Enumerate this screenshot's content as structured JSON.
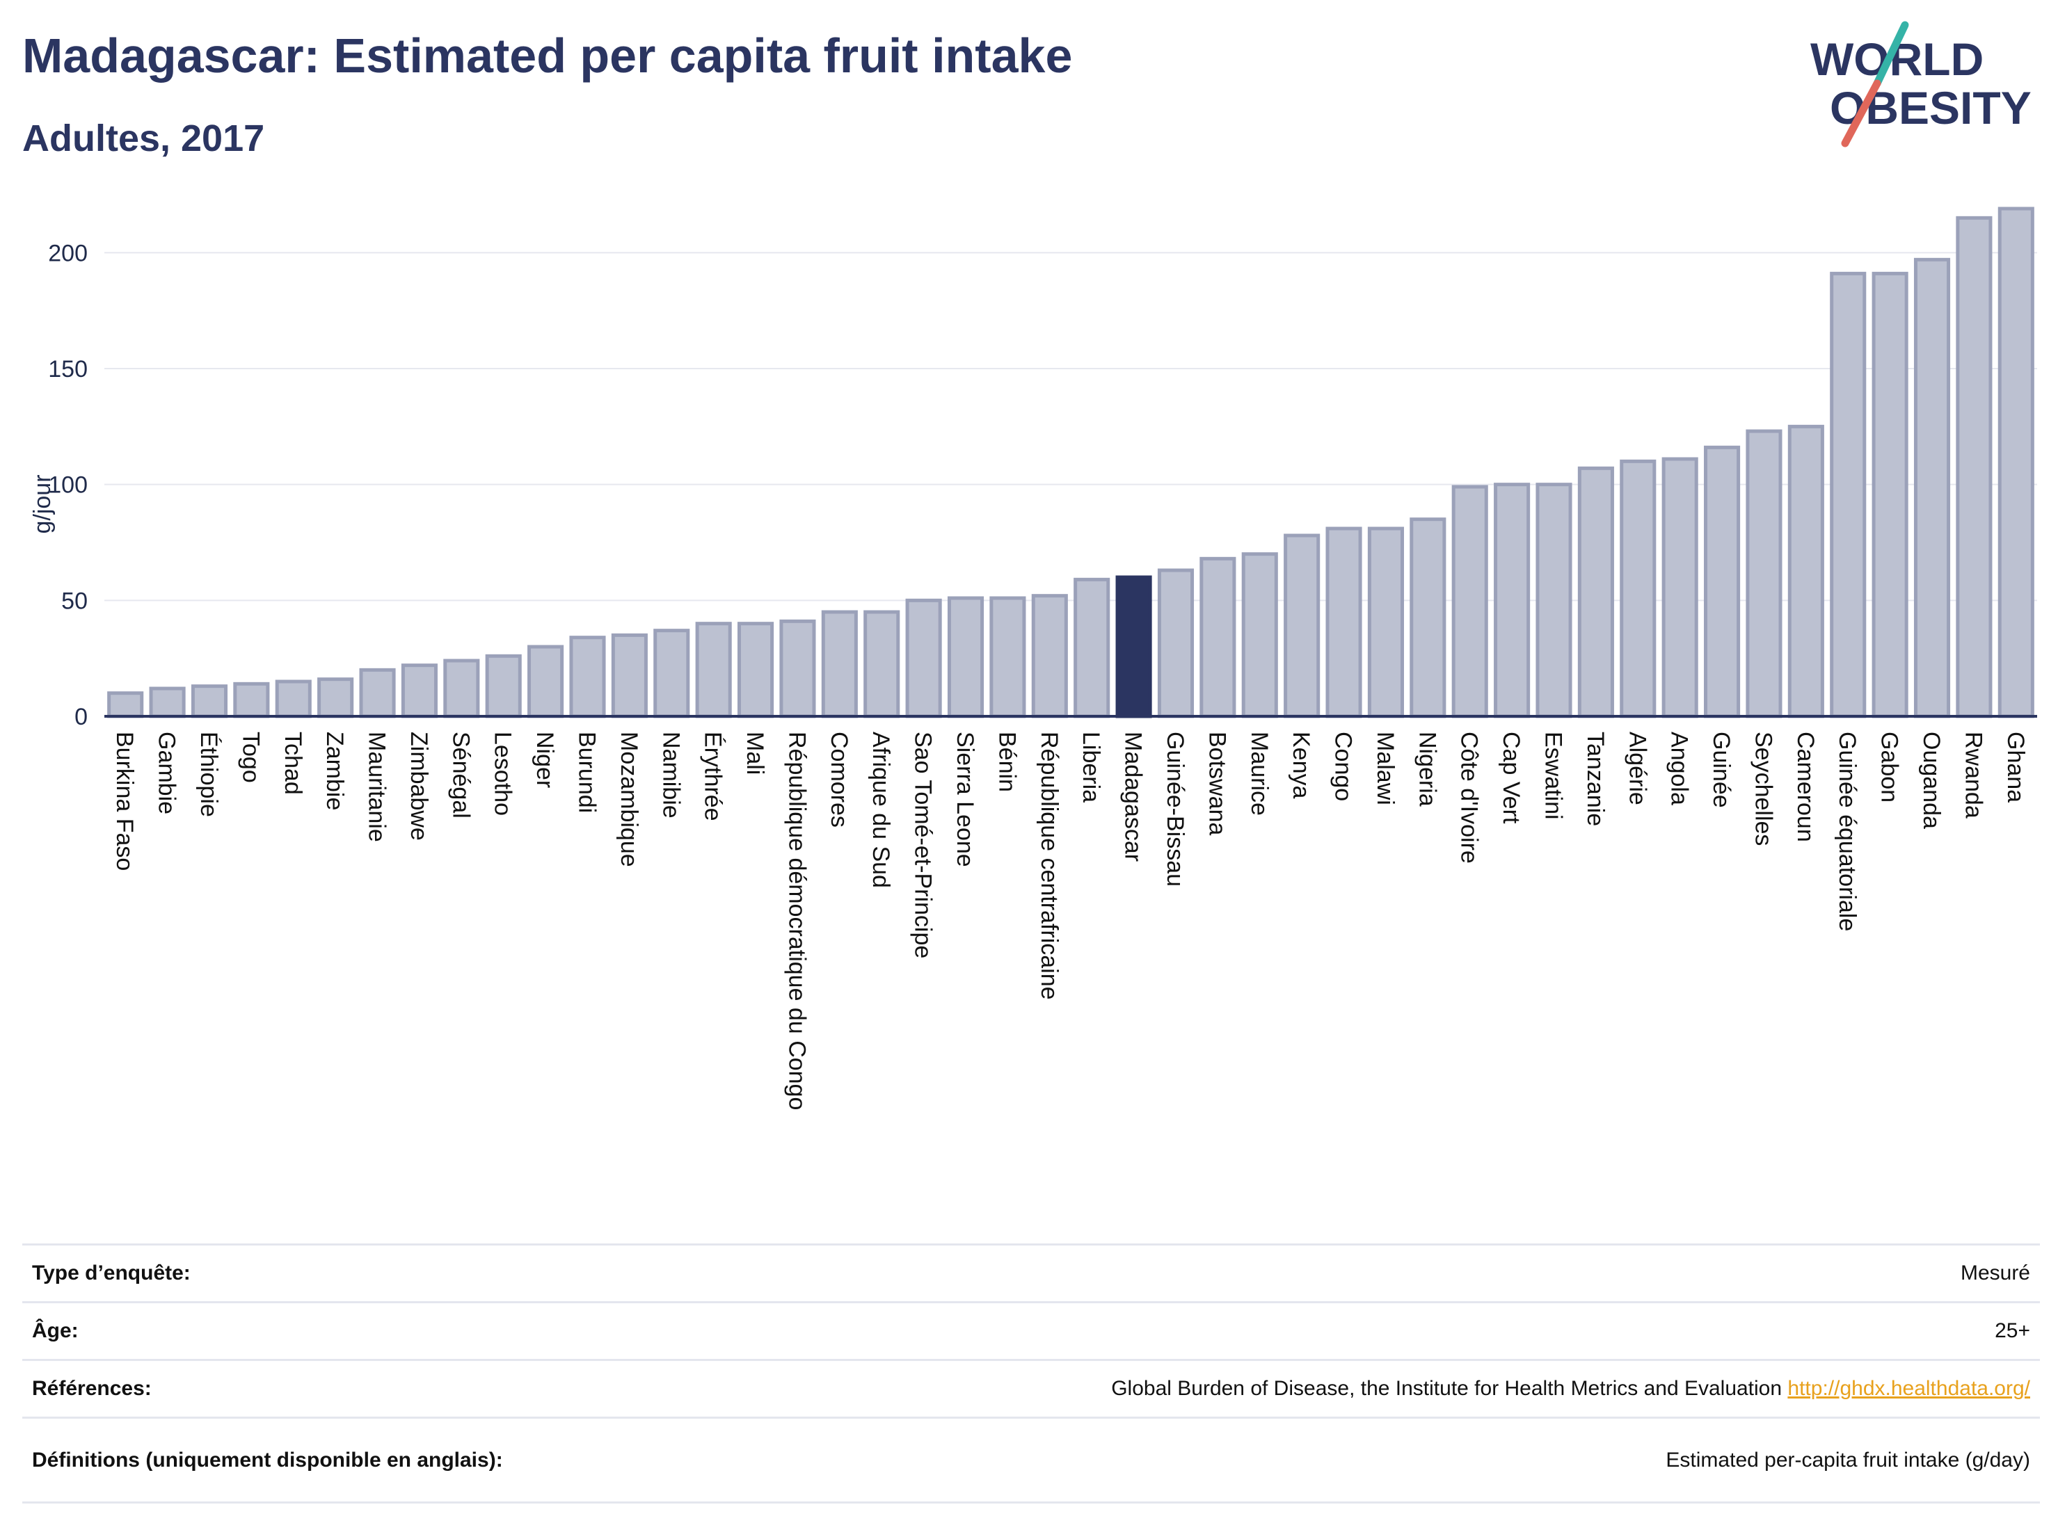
{
  "header": {
    "title": "Madagascar: Estimated per capita fruit intake",
    "subtitle": "Adultes, 2017"
  },
  "logo": {
    "line1": "WORLD",
    "line2": "OBESITY"
  },
  "colors": {
    "highlight": "#2b3561",
    "bar_fill": "#bcc1d1",
    "bar_stroke": "#9ba1b9",
    "grid": "#e6e8ef",
    "axis": "#2b3561",
    "logo_teal": "#35b3a7",
    "logo_red": "#e0675a",
    "link": "#e8a11d"
  },
  "chart_data": {
    "type": "bar",
    "title": "Madagascar: Estimated per capita fruit intake",
    "subtitle": "Adultes, 2017",
    "ylabel": "g/jour",
    "ylim": [
      0,
      225
    ],
    "yticks": [
      0,
      50,
      100,
      150,
      200
    ],
    "grid": true,
    "highlight": "Madagascar",
    "categories": [
      "Burkina Faso",
      "Gambie",
      "Éthiopie",
      "Togo",
      "Tchad",
      "Zambie",
      "Mauritanie",
      "Zimbabwe",
      "Sénégal",
      "Lesotho",
      "Niger",
      "Burundi",
      "Mozambique",
      "Namibie",
      "Érythrée",
      "Mali",
      "République démocratique du Congo",
      "Comores",
      "Afrique du Sud",
      "Sao Tomé-et-Principe",
      "Sierra Leone",
      "Bénin",
      "République centrafricaine",
      "Liberia",
      "Madagascar",
      "Guinée-Bissau",
      "Botswana",
      "Maurice",
      "Kenya",
      "Congo",
      "Malawi",
      "Nigeria",
      "Côte d'Ivoire",
      "Cap Vert",
      "Eswatini",
      "Tanzanie",
      "Algérie",
      "Angola",
      "Guinée",
      "Seychelles",
      "Cameroun",
      "Guinée équatoriale",
      "Gabon",
      "Ouganda",
      "Rwanda",
      "Ghana"
    ],
    "values": [
      10,
      12,
      13,
      14,
      15,
      16,
      20,
      22,
      24,
      26,
      30,
      34,
      35,
      37,
      40,
      40,
      41,
      45,
      45,
      50,
      51,
      51,
      52,
      59,
      60,
      63,
      68,
      70,
      78,
      81,
      81,
      85,
      99,
      100,
      100,
      107,
      110,
      111,
      116,
      123,
      125,
      191,
      191,
      197,
      215,
      219
    ]
  },
  "info": {
    "rows": [
      {
        "key": "Type d’enquête:",
        "value": "Mesuré"
      },
      {
        "key": "Âge:",
        "value": "25+"
      },
      {
        "key": "Références:",
        "value": "Global Burden of Disease, the Institute for Health Metrics and Evaluation",
        "link": "http://ghdx.healthdata.org/"
      },
      {
        "key": "Définitions (uniquement disponible en anglais):",
        "value": "Estimated per-capita fruit intake (g/day)"
      }
    ]
  }
}
